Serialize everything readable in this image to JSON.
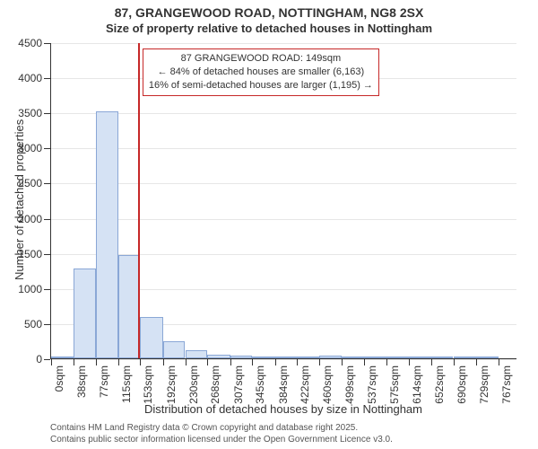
{
  "title": {
    "line1": "87, GRANGEWOOD ROAD, NOTTINGHAM, NG8 2SX",
    "line2": "Size of property relative to detached houses in Nottingham"
  },
  "histogram": {
    "type": "histogram",
    "x_ticks": [
      0,
      38,
      77,
      115,
      153,
      192,
      230,
      268,
      307,
      345,
      384,
      422,
      460,
      499,
      537,
      575,
      614,
      652,
      690,
      729,
      767
    ],
    "x_tick_labels": [
      "0sqm",
      "38sqm",
      "77sqm",
      "115sqm",
      "153sqm",
      "192sqm",
      "230sqm",
      "268sqm",
      "307sqm",
      "345sqm",
      "384sqm",
      "422sqm",
      "460sqm",
      "499sqm",
      "537sqm",
      "575sqm",
      "614sqm",
      "652sqm",
      "690sqm",
      "729sqm",
      "767sqm"
    ],
    "x_max": 800,
    "y_ticks": [
      0,
      500,
      1000,
      1500,
      2000,
      2500,
      3000,
      3500,
      4000,
      4500
    ],
    "y_max": 4500,
    "bars": [
      {
        "x0": 0,
        "x1": 38,
        "y": 10
      },
      {
        "x0": 38,
        "x1": 77,
        "y": 1280
      },
      {
        "x0": 77,
        "x1": 115,
        "y": 3520
      },
      {
        "x0": 115,
        "x1": 153,
        "y": 1470
      },
      {
        "x0": 153,
        "x1": 192,
        "y": 590
      },
      {
        "x0": 192,
        "x1": 230,
        "y": 240
      },
      {
        "x0": 230,
        "x1": 268,
        "y": 120
      },
      {
        "x0": 268,
        "x1": 307,
        "y": 55
      },
      {
        "x0": 307,
        "x1": 345,
        "y": 40
      },
      {
        "x0": 345,
        "x1": 384,
        "y": 30
      },
      {
        "x0": 384,
        "x1": 422,
        "y": 22
      },
      {
        "x0": 422,
        "x1": 460,
        "y": 10
      },
      {
        "x0": 460,
        "x1": 499,
        "y": 35
      },
      {
        "x0": 499,
        "x1": 537,
        "y": 8
      },
      {
        "x0": 537,
        "x1": 575,
        "y": 6
      },
      {
        "x0": 575,
        "x1": 614,
        "y": 5
      },
      {
        "x0": 614,
        "x1": 652,
        "y": 4
      },
      {
        "x0": 652,
        "x1": 690,
        "y": 3
      },
      {
        "x0": 690,
        "x1": 729,
        "y": 8
      },
      {
        "x0": 729,
        "x1": 767,
        "y": 4
      }
    ],
    "bar_fill": "#d5e2f4",
    "bar_stroke": "#8aa7d6",
    "grid_color": "#333333",
    "grid_opacity": 0.12,
    "background": "#ffffff"
  },
  "marker": {
    "x": 149,
    "color": "#c62828",
    "annotation": {
      "line1": "87 GRANGEWOOD ROAD: 149sqm",
      "line2": "← 84% of detached houses are smaller (6,163)",
      "line3": "16% of semi-detached houses are larger (1,195) →"
    }
  },
  "axes": {
    "x_label": "Distribution of detached houses by size in Nottingham",
    "y_label": "Number of detached properties",
    "tick_fontsize": 12,
    "label_fontsize": 13
  },
  "footer": {
    "line1": "Contains HM Land Registry data © Crown copyright and database right 2025.",
    "line2": "Contains public sector information licensed under the Open Government Licence v3.0."
  }
}
